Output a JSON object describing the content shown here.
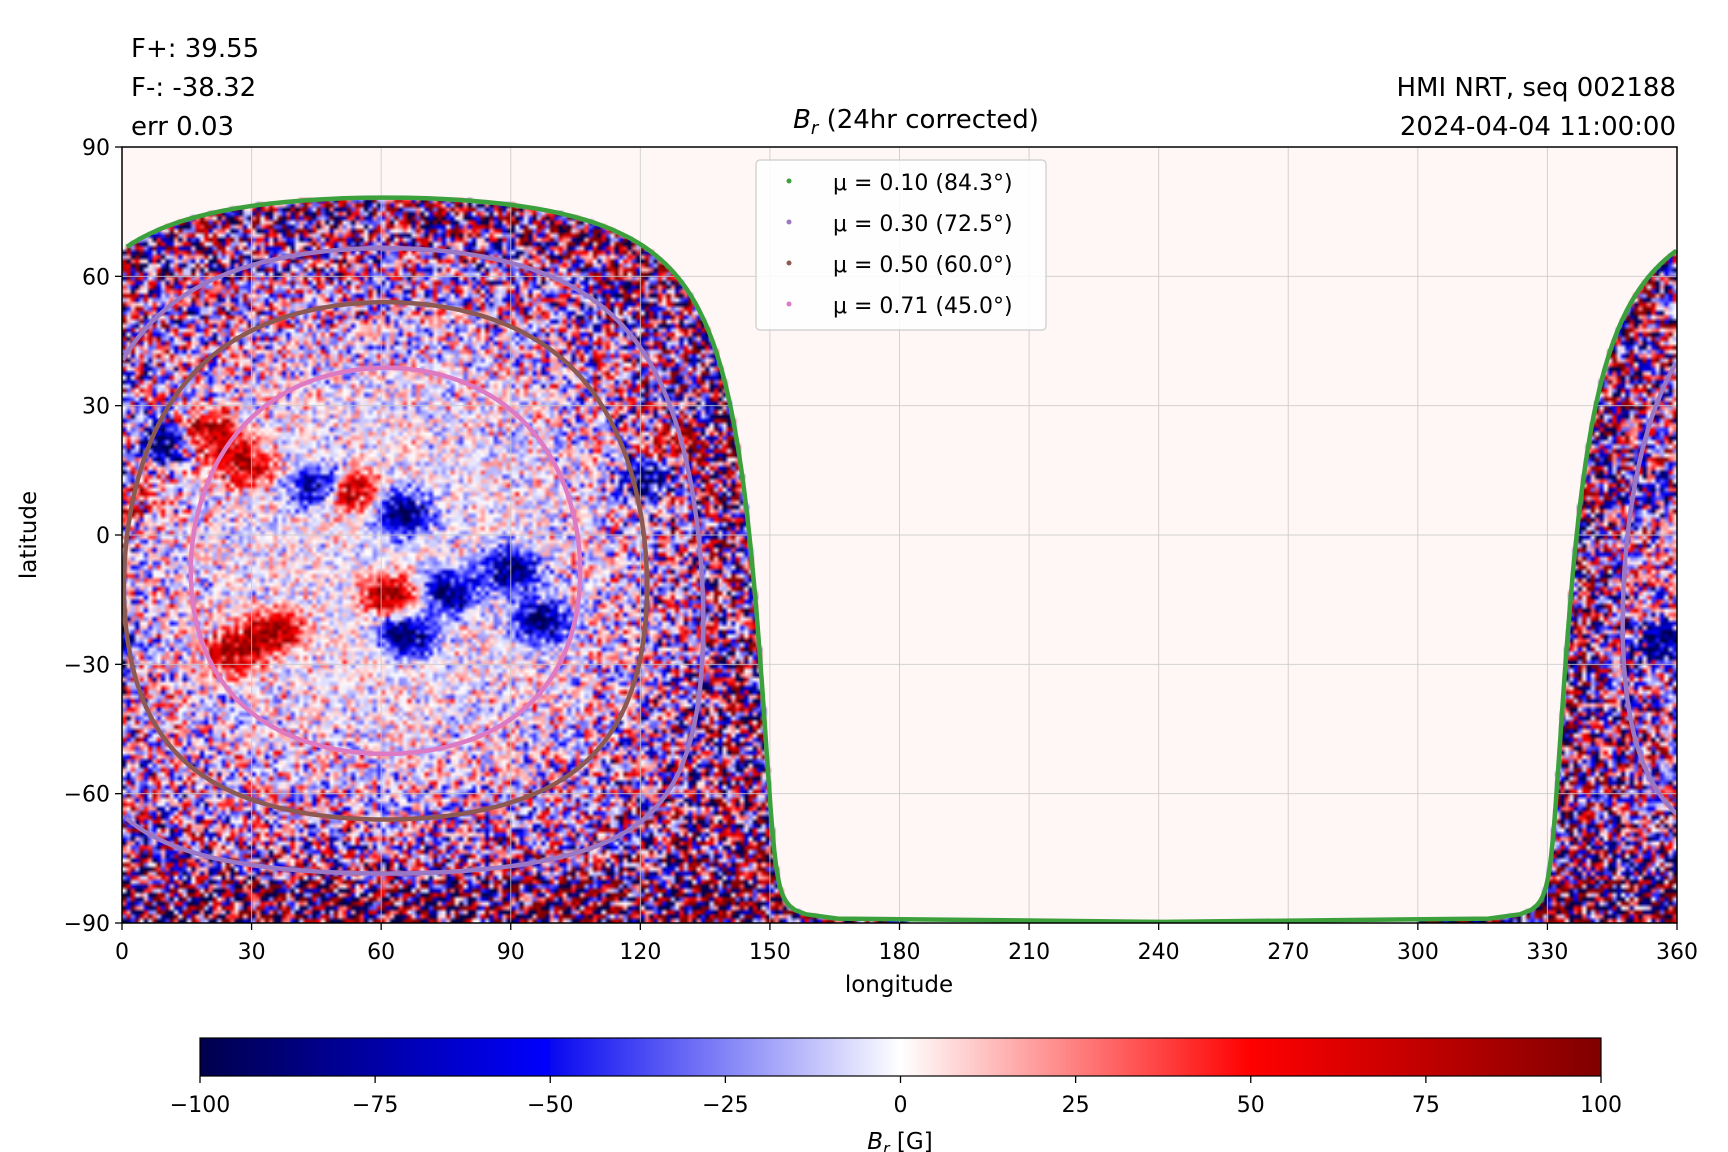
{
  "header": {
    "flux_pos": "F+: 39.55",
    "flux_neg": "F-: -38.32",
    "err": "err 0.03",
    "source": "HMI NRT, seq 002188",
    "timestamp": "2024-04-04 11:00:00"
  },
  "colors": {
    "mu_010": "#3ca03c",
    "mu_030": "#9b78c6",
    "mu_050": "#8c5a52",
    "mu_071": "#de7ac4",
    "grid": "#c8c8c8",
    "background": "#fff6f6"
  },
  "chart_data": {
    "type": "heatmap",
    "title_symbol": "B",
    "title_subscript": "r",
    "title_rest": " (24hr corrected)",
    "xlabel": "longitude",
    "ylabel": "latitude",
    "xlim": [
      0,
      360
    ],
    "ylim": [
      -90,
      90
    ],
    "xticks": [
      "0",
      "30",
      "60",
      "90",
      "120",
      "150",
      "180",
      "210",
      "240",
      "270",
      "300",
      "330",
      "360"
    ],
    "yticks": [
      "90",
      "60",
      "30",
      "0",
      "−30",
      "−60",
      "−90"
    ],
    "grid": true,
    "legend_position": "top-center",
    "disk_center": {
      "lon": 61,
      "lat": -6
    },
    "series": [
      {
        "name": "μ = 0.10 (84.3°)",
        "mu": 0.1,
        "angle_deg": 84.3,
        "color": "#3ca03c"
      },
      {
        "name": "μ = 0.30 (72.5°)",
        "mu": 0.3,
        "angle_deg": 72.5,
        "color": "#9b78c6"
      },
      {
        "name": "μ = 0.50 (60.0°)",
        "mu": 0.5,
        "angle_deg": 60.0,
        "color": "#8c5a52"
      },
      {
        "name": "μ = 0.71 (45.0°)",
        "mu": 0.71,
        "angle_deg": 45.0,
        "color": "#de7ac4"
      }
    ],
    "active_regions": [
      {
        "lon": 20,
        "lat": 24,
        "sign": 1
      },
      {
        "lon": 28,
        "lat": 16,
        "sign": 1
      },
      {
        "lon": 10,
        "lat": 22,
        "sign": -1
      },
      {
        "lon": 2,
        "lat": 8,
        "sign": 1
      },
      {
        "lon": 128,
        "lat": 20,
        "sign": 1
      },
      {
        "lon": 122,
        "lat": 13,
        "sign": -1
      },
      {
        "lon": 52,
        "lat": 10,
        "sign": 1
      },
      {
        "lon": 46,
        "lat": 11,
        "sign": -1
      },
      {
        "lon": 65,
        "lat": 5,
        "sign": -1
      },
      {
        "lon": 35,
        "lat": -22,
        "sign": 1
      },
      {
        "lon": 26,
        "lat": -27,
        "sign": 1
      },
      {
        "lon": 62,
        "lat": -14,
        "sign": 1
      },
      {
        "lon": 76,
        "lat": -13,
        "sign": -1
      },
      {
        "lon": 66,
        "lat": -23,
        "sign": -1
      },
      {
        "lon": 97,
        "lat": -20,
        "sign": -1
      },
      {
        "lon": 90,
        "lat": -8,
        "sign": -1
      },
      {
        "lon": 358,
        "lat": 9,
        "sign": -1
      },
      {
        "lon": 356,
        "lat": -25,
        "sign": -1
      }
    ],
    "colorbar": {
      "label_symbol": "B",
      "label_subscript": "r",
      "label_unit": " [G]",
      "range": [
        -100,
        100
      ],
      "ticks": [
        "−100",
        "−75",
        "−50",
        "−25",
        "0",
        "25",
        "50",
        "75",
        "100"
      ],
      "colormap": "seismic"
    }
  }
}
